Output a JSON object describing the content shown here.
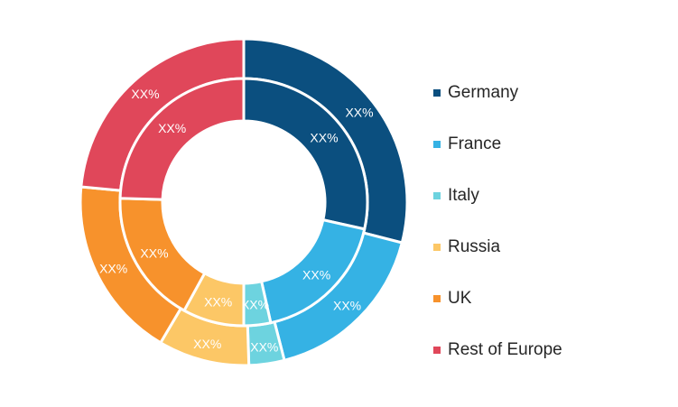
{
  "chart_data": {
    "type": "pie",
    "subtype": "nested-donut",
    "legend_position": "right",
    "categories": [
      "Germany",
      "France",
      "Italy",
      "Russia",
      "UK",
      "Rest of Europe"
    ],
    "colors": [
      "#0b4f7f",
      "#35b2e4",
      "#6dd3df",
      "#fcc766",
      "#f7922c",
      "#e0475a"
    ],
    "series": [
      {
        "ring": "outer",
        "values": [
          29,
          17,
          3.5,
          9,
          18,
          23.5
        ],
        "labels": [
          "XX%",
          "XX%",
          "XX%",
          "XX%",
          "XX%",
          "XX%"
        ]
      },
      {
        "ring": "inner",
        "values": [
          28.5,
          18,
          3.5,
          8,
          17.5,
          24.5
        ],
        "labels": [
          "XX%",
          "XX%",
          "XX%",
          "XX%",
          "XX%",
          "XX%"
        ]
      }
    ]
  }
}
